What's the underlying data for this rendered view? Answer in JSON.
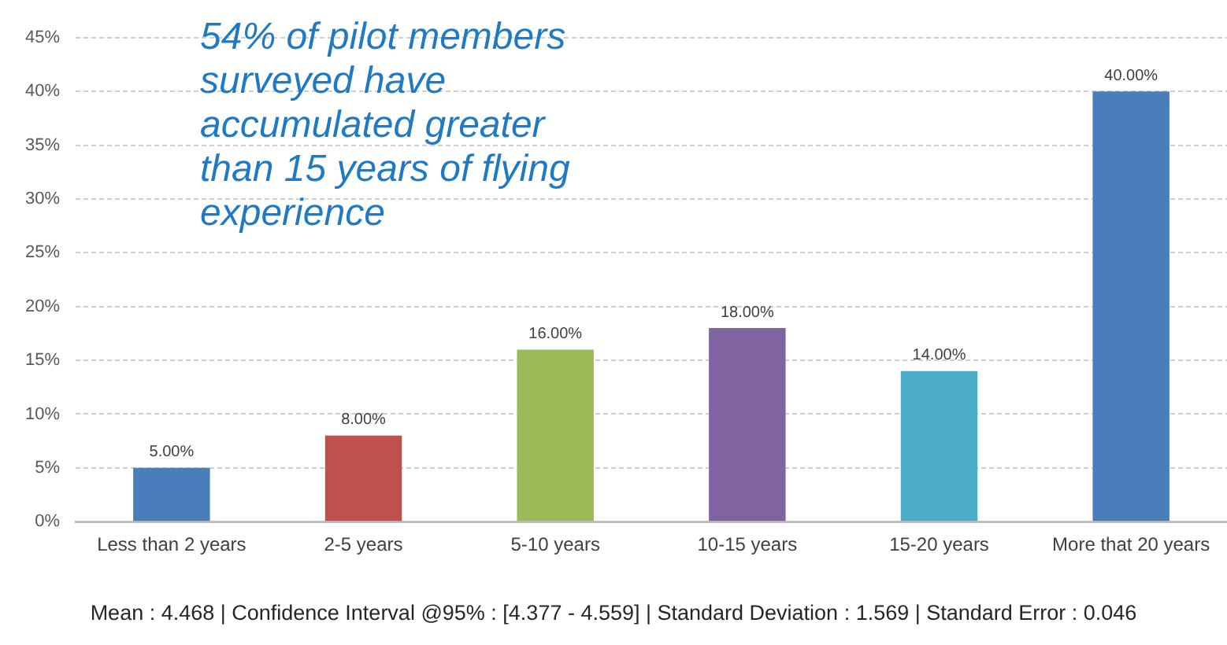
{
  "chart_data": {
    "type": "bar",
    "categories": [
      "Less than 2 years",
      "2-5 years",
      "5-10 years",
      "10-15 years",
      "15-20 years",
      "More that 20 years"
    ],
    "values": [
      5,
      8,
      16,
      18,
      14,
      40
    ],
    "colors": [
      "#4a7ebb",
      "#c0504d",
      "#9bbb59",
      "#8064a2",
      "#4bacc6",
      "#4a7ebb"
    ],
    "value_labels": [
      "5.00%",
      "8.00%",
      "16.00%",
      "18.00%",
      "14.00%",
      "40.00%"
    ],
    "ylim": [
      0,
      45
    ],
    "yticks": [
      {
        "value": 0,
        "label": "0%"
      },
      {
        "value": 5,
        "label": "5%"
      },
      {
        "value": 10,
        "label": "10%"
      },
      {
        "value": 15,
        "label": "15%"
      },
      {
        "value": 20,
        "label": "20%"
      },
      {
        "value": 25,
        "label": "25%"
      },
      {
        "value": 30,
        "label": "30%"
      },
      {
        "value": 35,
        "label": "35%"
      },
      {
        "value": 40,
        "label": "40%"
      },
      {
        "value": 45,
        "label": "45%"
      }
    ],
    "grid": "y",
    "annotations": [
      "54% of pilot members surveyed have accumulated greater than 15 years of flying experience",
      "Mean : 4.468 | Confidence Interval @95% : [4.377 - 4.559] | Standard Deviation : 1.569 | Standard Error : 0.046"
    ]
  }
}
